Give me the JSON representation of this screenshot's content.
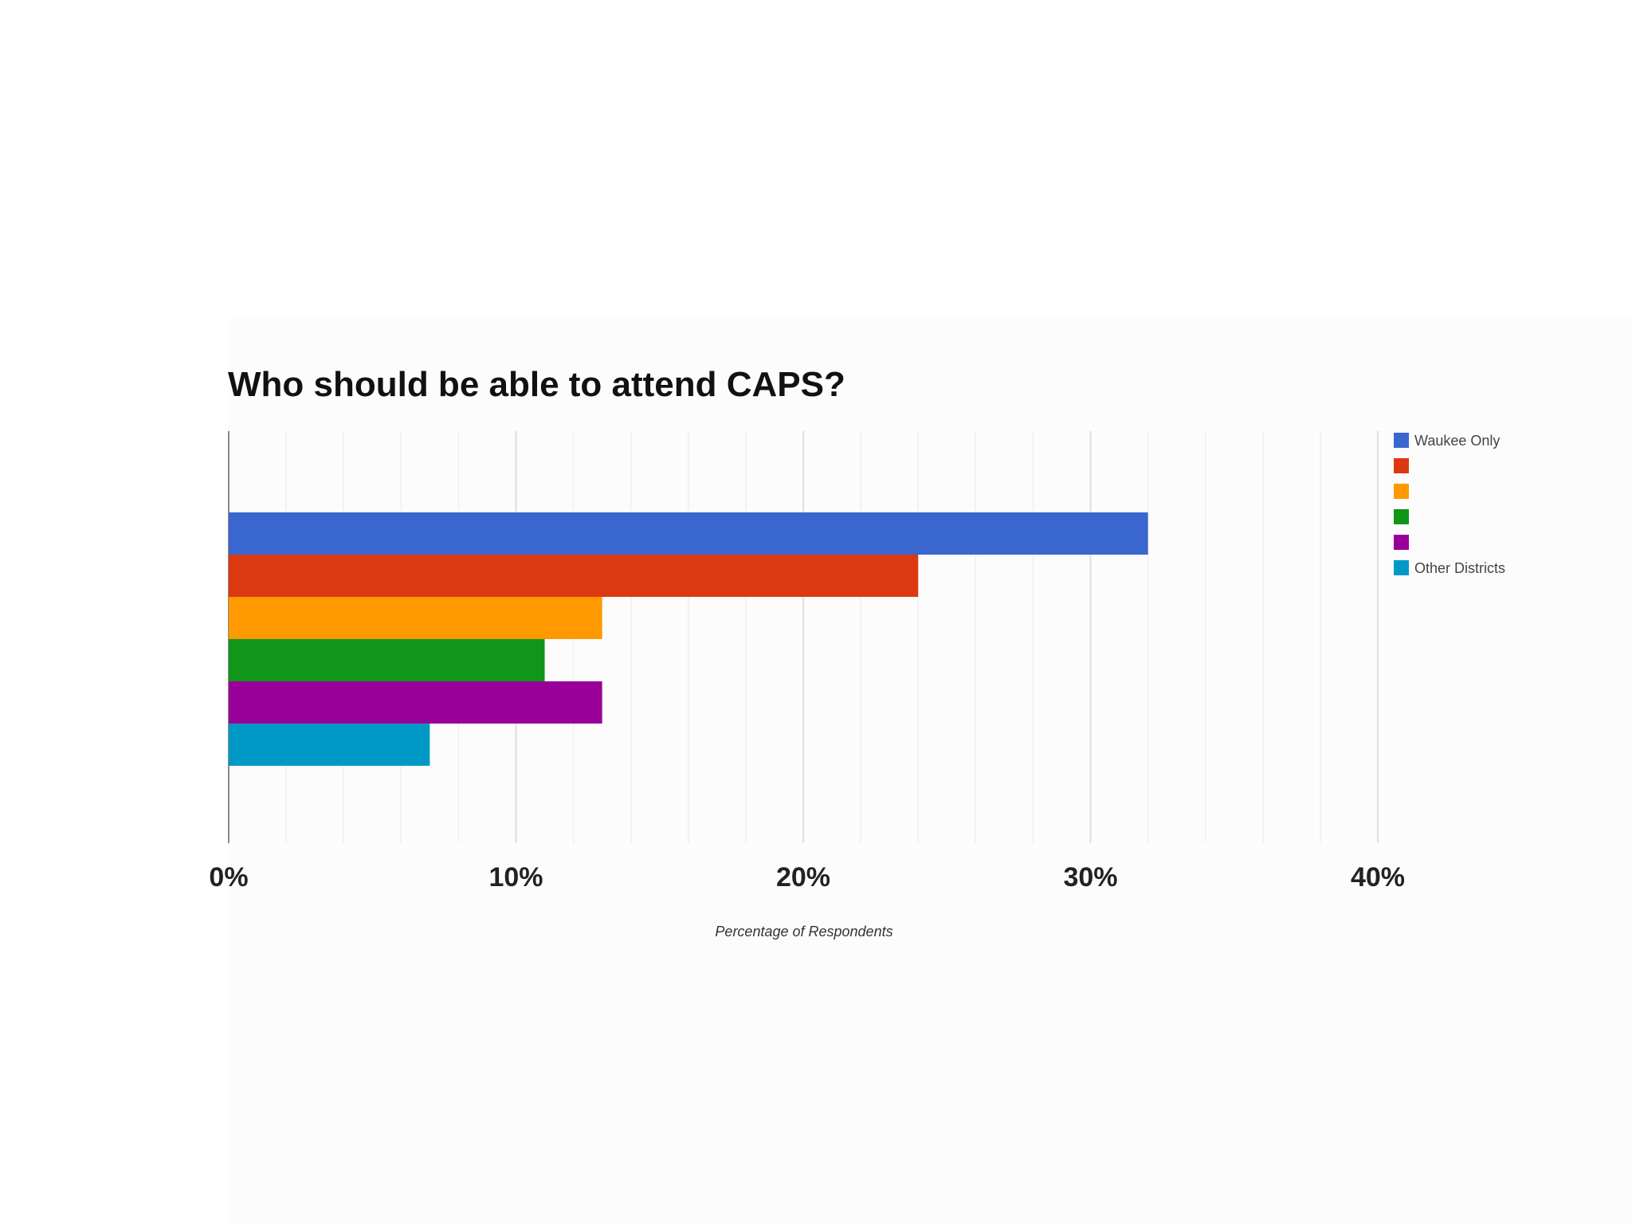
{
  "chart_data": {
    "type": "bar",
    "orientation": "horizontal",
    "title": "Who should be able to attend CAPS?",
    "xlabel": "Percentage of Respondents",
    "ylabel": "",
    "xlim": [
      0,
      40
    ],
    "tick_values": [
      0,
      10,
      20,
      30,
      40
    ],
    "tick_labels": [
      "0%",
      "10%",
      "20%",
      "30%",
      "40%"
    ],
    "grid": true,
    "legend_position": "right",
    "series": [
      {
        "name": "Waukee Only",
        "value": 32,
        "color": "#3a66d0"
      },
      {
        "name": "",
        "value": 24,
        "color": "#dc3912"
      },
      {
        "name": "",
        "value": 13,
        "color": "#ff9900"
      },
      {
        "name": "",
        "value": 11,
        "color": "#109618"
      },
      {
        "name": "",
        "value": 13,
        "color": "#990099"
      },
      {
        "name": "Other Districts",
        "value": 7,
        "color": "#0099c6"
      }
    ]
  }
}
